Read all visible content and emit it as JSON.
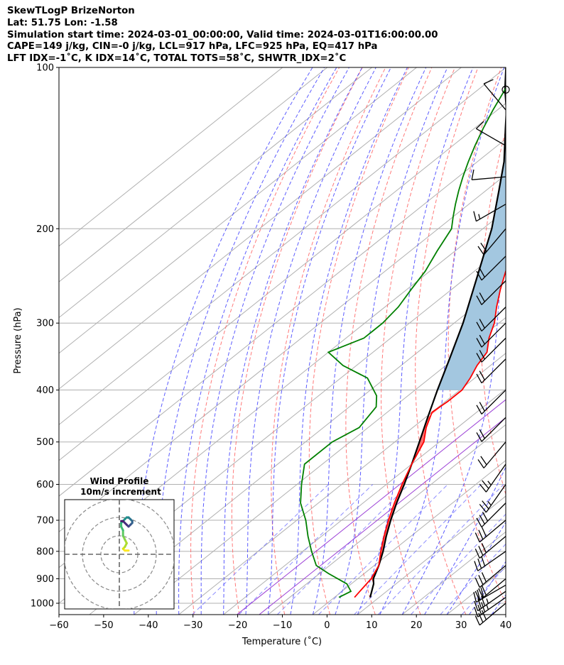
{
  "header": {
    "line1": "SkewTLogP BrizeNorton",
    "line2": "Lat: 51.75   Lon: -1.58",
    "line3": "Simulation start time: 2024-03-01_00:00:00, Valid time: 2024-03-01T16:00:00.00",
    "line4": "CAPE=149 j/kg, CIN=-0 j/kg, LCL=917 hPa, LFC=925 hPa, EQ=417 hPa",
    "line5": "LFT IDX=-1˚C, K IDX=14˚C, TOTAL TOTS=58˚C, SHWTR_IDX=2˚C"
  },
  "chart_data": {
    "type": "line",
    "subtype": "skew-t log-p",
    "xlabel": "Temperature (˚C)",
    "ylabel": "Pressure (hPa)",
    "xlim": [
      -60,
      40
    ],
    "ylim": [
      1050,
      100
    ],
    "y_scale": "log",
    "x_ticks": [
      "−60",
      "−50",
      "−40",
      "−30",
      "−20",
      "−10",
      "0",
      "10",
      "20",
      "30",
      "40"
    ],
    "y_ticks": [
      "100",
      "200",
      "300",
      "400",
      "500",
      "600",
      "700",
      "800",
      "900",
      "1000"
    ],
    "grid": true,
    "colors": {
      "temperature": "#ff0000",
      "dewpoint": "#008000",
      "parcel": "#000000",
      "cape_fill": "#a3c7e0",
      "cin_fill": "#ff6060",
      "dry_adiabat": "#ff6a6a",
      "moist_adiabat": "#4a4aff",
      "mixing_ratio": "#7070ff",
      "skewed_isotherm": "#b0b0b0",
      "dgz": "#9b3fd6"
    },
    "series": [
      {
        "name": "Temperature",
        "points": [
          [
            4.5,
            975
          ],
          [
            4,
            950
          ],
          [
            3,
            900
          ],
          [
            1,
            850
          ],
          [
            -2.5,
            800
          ],
          [
            -6,
            750
          ],
          [
            -9.5,
            700
          ],
          [
            -13,
            650
          ],
          [
            -16.5,
            600
          ],
          [
            -20,
            550
          ],
          [
            -23.5,
            500
          ],
          [
            -27,
            470
          ],
          [
            -30,
            440
          ],
          [
            -29.5,
            420
          ],
          [
            -29.5,
            400
          ],
          [
            -31,
            380
          ],
          [
            -33,
            360
          ],
          [
            -34.5,
            340
          ],
          [
            -38,
            320
          ],
          [
            -41,
            300
          ],
          [
            -45,
            280
          ],
          [
            -49,
            260
          ],
          [
            -53,
            240
          ],
          [
            -57,
            220
          ],
          [
            -60,
            200
          ],
          [
            -62,
            190
          ],
          [
            -64,
            180
          ],
          [
            -66,
            170
          ],
          [
            -68,
            160
          ],
          [
            -70.5,
            150
          ],
          [
            -73,
            140
          ],
          [
            -76,
            130
          ],
          [
            -79,
            120
          ],
          [
            -82,
            110
          ],
          [
            -85,
            100
          ]
        ]
      },
      {
        "name": "Dewpoint",
        "points": [
          [
            1,
            975
          ],
          [
            2,
            950
          ],
          [
            -1,
            920
          ],
          [
            -8,
            880
          ],
          [
            -13,
            850
          ],
          [
            -18,
            800
          ],
          [
            -23,
            750
          ],
          [
            -28,
            700
          ],
          [
            -34,
            650
          ],
          [
            -39,
            600
          ],
          [
            -44,
            550
          ],
          [
            -44,
            500
          ],
          [
            -42,
            470
          ],
          [
            -44,
            430
          ],
          [
            -47,
            410
          ],
          [
            -54,
            380
          ],
          [
            -63,
            360
          ],
          [
            -70,
            340
          ],
          [
            -66,
            320
          ],
          [
            -66,
            310
          ],
          [
            -66,
            300
          ],
          [
            -67,
            280
          ],
          [
            -69,
            260
          ],
          [
            -71,
            240
          ],
          [
            -74,
            220
          ],
          [
            -77,
            200
          ],
          [
            -80,
            190
          ],
          [
            -83,
            180
          ],
          [
            -86,
            170
          ],
          [
            -89,
            160
          ],
          [
            -92,
            150
          ],
          [
            -95,
            140
          ],
          [
            -98,
            130
          ],
          [
            -101,
            120
          ],
          [
            -104,
            110
          ],
          [
            -107,
            100
          ]
        ]
      },
      {
        "name": "Parcel",
        "points": [
          [
            8,
            975
          ],
          [
            5,
            920
          ],
          [
            3.5,
            900
          ],
          [
            1,
            850
          ],
          [
            -2,
            800
          ],
          [
            -5.5,
            750
          ],
          [
            -9,
            700
          ],
          [
            -12.5,
            650
          ],
          [
            -16,
            600
          ],
          [
            -20,
            550
          ],
          [
            -24.5,
            500
          ],
          [
            -29.5,
            450
          ],
          [
            -35,
            400
          ],
          [
            -41,
            350
          ],
          [
            -48,
            300
          ],
          [
            -57,
            250
          ],
          [
            -68,
            200
          ],
          [
            -77,
            170
          ],
          [
            -84,
            150
          ],
          [
            -93,
            130
          ],
          [
            -98,
            120
          ],
          [
            -104,
            110
          ],
          [
            -110,
            100
          ]
        ]
      }
    ],
    "wind_barbs": [
      {
        "p": 1000,
        "speed": 30,
        "dir": 230
      },
      {
        "p": 975,
        "speed": 35,
        "dir": 235
      },
      {
        "p": 950,
        "speed": 35,
        "dir": 235
      },
      {
        "p": 925,
        "speed": 30,
        "dir": 240
      },
      {
        "p": 900,
        "speed": 30,
        "dir": 230
      },
      {
        "p": 850,
        "speed": 30,
        "dir": 230
      },
      {
        "p": 800,
        "speed": 30,
        "dir": 235
      },
      {
        "p": 750,
        "speed": 30,
        "dir": 230
      },
      {
        "p": 700,
        "speed": 30,
        "dir": 230
      },
      {
        "p": 650,
        "speed": 30,
        "dir": 225
      },
      {
        "p": 600,
        "speed": 25,
        "dir": 215
      },
      {
        "p": 550,
        "speed": 25,
        "dir": 215
      },
      {
        "p": 500,
        "speed": 20,
        "dir": 220
      },
      {
        "p": 450,
        "speed": 20,
        "dir": 225
      },
      {
        "p": 400,
        "speed": 20,
        "dir": 225
      },
      {
        "p": 350,
        "speed": 20,
        "dir": 225
      },
      {
        "p": 320,
        "speed": 20,
        "dir": 225
      },
      {
        "p": 300,
        "speed": 20,
        "dir": 225
      },
      {
        "p": 280,
        "speed": 20,
        "dir": 225
      },
      {
        "p": 250,
        "speed": 20,
        "dir": 225
      },
      {
        "p": 225,
        "speed": 20,
        "dir": 225
      },
      {
        "p": 200,
        "speed": 20,
        "dir": 220
      },
      {
        "p": 180,
        "speed": 15,
        "dir": 240
      },
      {
        "p": 160,
        "speed": 10,
        "dir": 265
      },
      {
        "p": 140,
        "speed": 10,
        "dir": 300
      },
      {
        "p": 120,
        "speed": 10,
        "dir": 320
      },
      {
        "p": 110,
        "speed": 0,
        "dir": 0
      }
    ],
    "hodograph": {
      "title": "Wind Profile",
      "subtitle": "10m/s increment",
      "rings": [
        10,
        20,
        30
      ],
      "points": [
        [
          5,
          2
        ],
        [
          3,
          2
        ],
        [
          2,
          3
        ],
        [
          3,
          4
        ],
        [
          4,
          6
        ],
        [
          3,
          8
        ],
        [
          2,
          10
        ],
        [
          2,
          13
        ],
        [
          1,
          15
        ],
        [
          1,
          17
        ],
        [
          2,
          18
        ],
        [
          3,
          19
        ],
        [
          4,
          20
        ],
        [
          5,
          20
        ],
        [
          6,
          19
        ],
        [
          7,
          18
        ],
        [
          7,
          17
        ],
        [
          6,
          16
        ],
        [
          5,
          15
        ],
        [
          4,
          16
        ],
        [
          3,
          17
        ],
        [
          2,
          18
        ],
        [
          1,
          18
        ]
      ]
    }
  }
}
